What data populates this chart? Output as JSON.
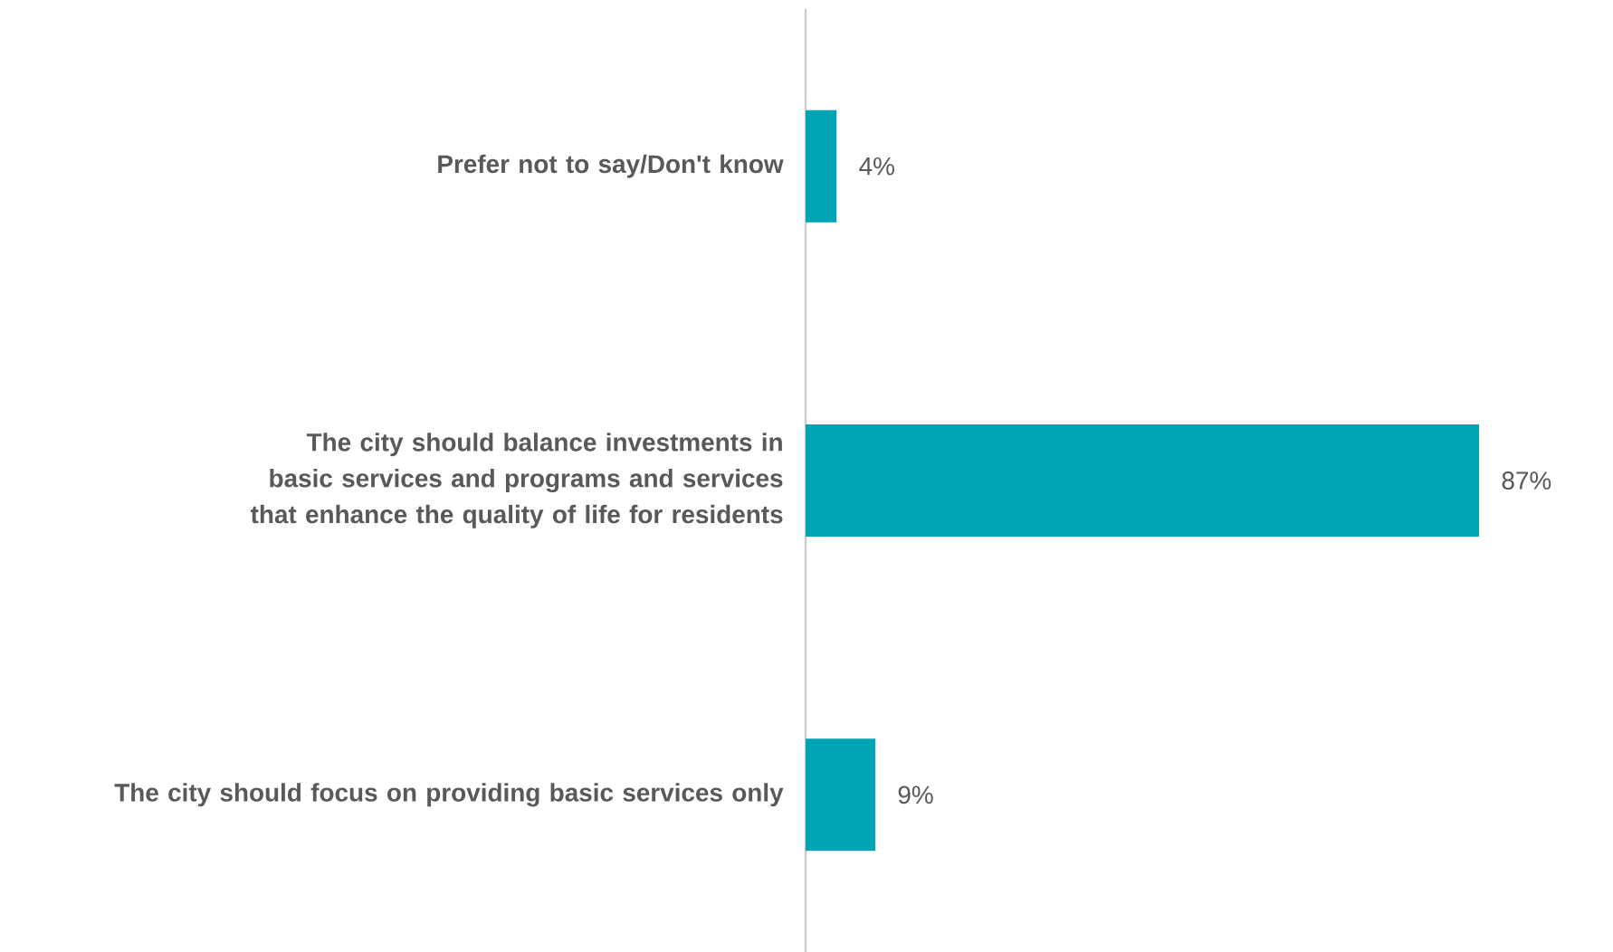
{
  "chart_data": {
    "type": "bar",
    "orientation": "horizontal",
    "categories": [
      "Prefer not to say/Don't know",
      "The city should balance investments in basic services and programs and services that enhance the quality of life for residents",
      "The city should focus on providing basic services only"
    ],
    "values": [
      4,
      87,
      9
    ],
    "value_labels": [
      "4%",
      "87%",
      "9%"
    ],
    "color": "#00a5b5"
  }
}
